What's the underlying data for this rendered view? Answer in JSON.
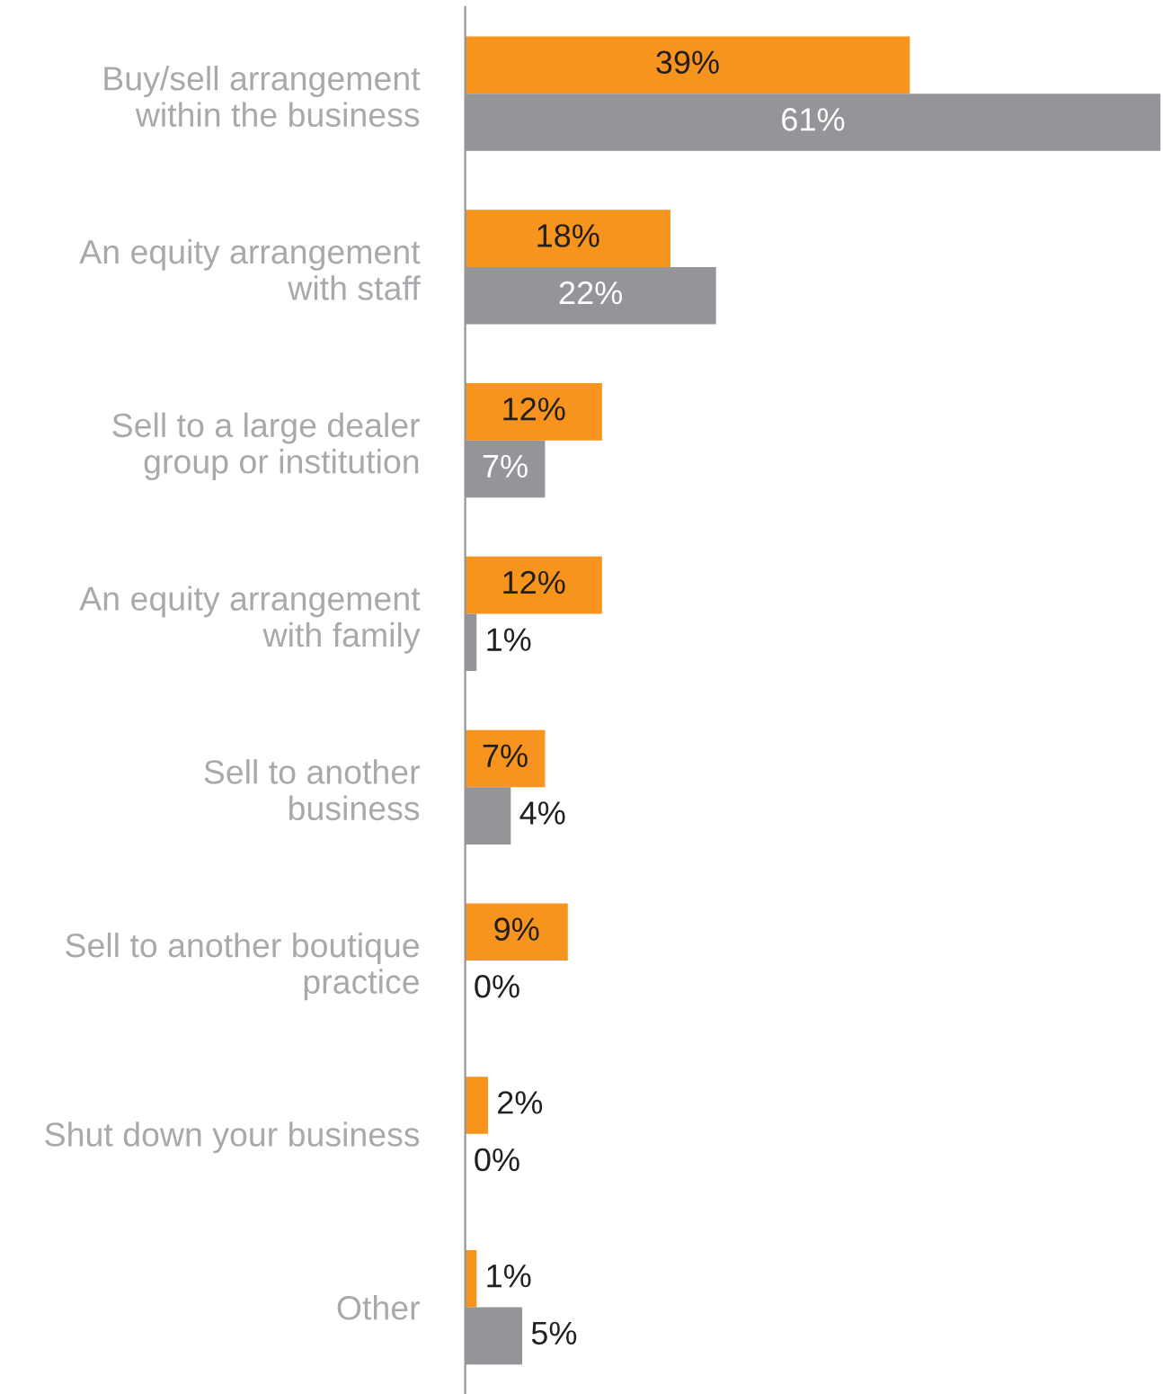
{
  "chart_data": {
    "type": "bar",
    "orientation": "horizontal",
    "categories": [
      "Buy/sell arrangement\nwithin the business",
      "An equity arrangement\nwith staff",
      "Sell to a large dealer\ngroup or institution",
      "An equity arrangement\nwith family",
      "Sell to another\nbusiness",
      "Sell to another boutique\npractice",
      "Shut down your business",
      "Other"
    ],
    "series": [
      {
        "color": "#f7941d",
        "values": [
          39,
          18,
          12,
          12,
          7,
          9,
          2,
          1
        ],
        "value_labels": [
          "39%",
          "18%",
          "12%",
          "12%",
          "7%",
          "9%",
          "2%",
          "1%"
        ]
      },
      {
        "color": "#939598",
        "values": [
          61,
          22,
          7,
          1,
          4,
          0,
          0,
          5
        ],
        "value_labels": [
          "61%",
          "22%",
          "7%",
          "1%",
          "4%",
          "0%",
          "0%",
          "5%"
        ]
      }
    ],
    "grid": false,
    "legend": false,
    "tick_labels": "y"
  }
}
